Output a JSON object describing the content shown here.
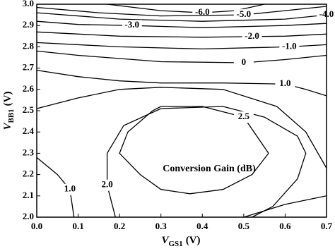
{
  "chart_data": {
    "type": "contour",
    "annotation": "Conversion Gain (dB)",
    "xlabel": {
      "main": "V",
      "sub": "GS1",
      "unit": "(V)"
    },
    "ylabel": {
      "main": "V",
      "sub": "BB1",
      "unit": "(V)"
    },
    "xlim": [
      0,
      0.7
    ],
    "xticks": [
      {
        "value": 0,
        "label": "0.0"
      },
      0.1,
      0.2,
      0.3,
      0.4,
      0.5,
      0.6,
      0.7
    ],
    "ylim": [
      2.0,
      3.0
    ],
    "yticks": [
      {
        "value": 2.0,
        "label": "2.0"
      },
      2.1,
      2.2,
      2.3,
      2.4,
      2.5,
      2.6,
      2.7,
      2.8,
      2.9,
      {
        "value": 3.0,
        "label": "3.0"
      }
    ],
    "color": "#000000",
    "series": [
      {
        "label": "-6.0",
        "x": [
          0.17,
          0.3,
          0.4,
          0.48,
          0.55
        ],
        "y": [
          3.0,
          2.97,
          2.96,
          2.97,
          3.0
        ]
      },
      {
        "label": "-5.0",
        "x": [
          0.0,
          0.15,
          0.3,
          0.5,
          0.6,
          0.7
        ],
        "y": [
          2.985,
          2.96,
          2.945,
          2.95,
          2.97,
          2.99
        ]
      },
      {
        "label": "-4.0",
        "x": [
          0.0,
          0.2,
          0.4,
          0.6,
          0.7
        ],
        "y": [
          2.96,
          2.93,
          2.92,
          2.93,
          2.95
        ]
      },
      {
        "label": "-3.0",
        "x": [
          0.0,
          0.1,
          0.23,
          0.4,
          0.6,
          0.7
        ],
        "y": [
          2.92,
          2.905,
          2.9,
          2.89,
          2.9,
          2.91
        ]
      },
      {
        "label": "-2.0",
        "x": [
          0.0,
          0.2,
          0.4,
          0.52,
          0.6,
          0.7
        ],
        "y": [
          2.87,
          2.85,
          2.845,
          2.848,
          2.85,
          2.86
        ]
      },
      {
        "label": "-1.0",
        "x": [
          0.0,
          0.2,
          0.4,
          0.61,
          0.7
        ],
        "y": [
          2.82,
          2.8,
          2.79,
          2.8,
          2.81
        ]
      },
      {
        "label": "0",
        "x": [
          0.0,
          0.1,
          0.3,
          0.5,
          0.6,
          0.7
        ],
        "y": [
          2.78,
          2.76,
          2.73,
          2.725,
          2.74,
          2.76
        ]
      },
      {
        "label": "1.0",
        "x": [
          0.0,
          0.1,
          0.2,
          0.3,
          0.45,
          0.6,
          0.65,
          0.7
        ],
        "y": [
          2.69,
          2.66,
          2.64,
          2.63,
          2.63,
          2.625,
          2.6,
          2.57
        ]
      },
      {
        "x": [
          0.0,
          0.1,
          0.2,
          0.3,
          0.45,
          0.58,
          0.65,
          0.7
        ],
        "y": [
          2.51,
          2.56,
          2.6,
          2.61,
          2.6,
          2.52,
          2.4,
          2.23
        ]
      },
      {
        "label": "2.0",
        "x": [
          0.19,
          0.17,
          0.17,
          0.21,
          0.3,
          0.45,
          0.55,
          0.63,
          0.65,
          0.63,
          0.57,
          0.52
        ],
        "y": [
          2.0,
          2.15,
          2.3,
          2.43,
          2.51,
          2.52,
          2.47,
          2.38,
          2.3,
          2.18,
          2.05,
          2.0
        ]
      },
      {
        "label": "2.5",
        "x": [
          0.3,
          0.4,
          0.5,
          0.56,
          0.52,
          0.45,
          0.37,
          0.3,
          0.25,
          0.2,
          0.22,
          0.28,
          0.3
        ],
        "y": [
          2.52,
          2.52,
          2.47,
          2.3,
          2.2,
          2.13,
          2.11,
          2.13,
          2.2,
          2.3,
          2.4,
          2.5,
          2.52
        ]
      },
      {
        "label": "1.0",
        "x": [
          0.0,
          0.05,
          0.08,
          0.09
        ],
        "y": [
          2.28,
          2.2,
          2.13,
          2.0
        ]
      },
      {
        "x": [
          0.5,
          0.6,
          0.7
        ],
        "y": [
          2.0,
          2.06,
          2.1
        ]
      }
    ]
  }
}
